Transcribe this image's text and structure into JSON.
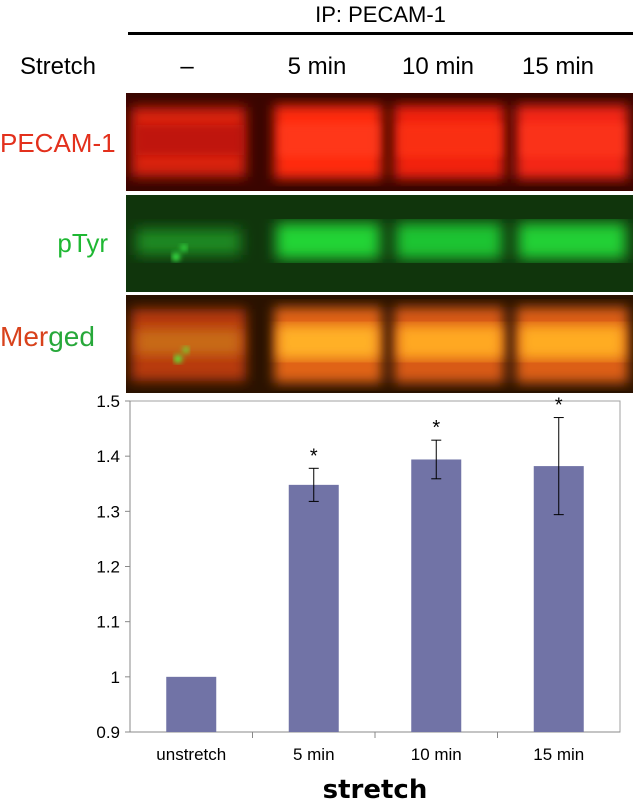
{
  "header": {
    "ip_label": "IP: PECAM-1",
    "stretch_label": "Stretch",
    "lanes": [
      "–",
      "5 min",
      "10 min",
      "15 min"
    ]
  },
  "blots": {
    "pecam": {
      "label": "PECAM-1",
      "color": "#ff2a10"
    },
    "ptyr": {
      "label": "pTyr",
      "color": "#22e03a"
    },
    "merged": {
      "label_part1": "Mer",
      "label_part2": "ged",
      "color": "#ffb020"
    }
  },
  "chart_data": {
    "type": "bar",
    "categories": [
      "unstretch",
      "5 min",
      "10 min",
      "15 min"
    ],
    "values": [
      1.0,
      1.348,
      1.394,
      1.382
    ],
    "errors": [
      0,
      0.03,
      0.035,
      0.088
    ],
    "annotations": [
      "",
      "*",
      "*",
      "*"
    ],
    "xlabel": "stretch",
    "ylabel": "",
    "ylim": [
      0.9,
      1.5
    ],
    "yticks": [
      "0.9",
      "1",
      "1.1",
      "1.2",
      "1.3",
      "1.4",
      "1.5"
    ],
    "bar_color": "#7173a6",
    "grid": false
  }
}
